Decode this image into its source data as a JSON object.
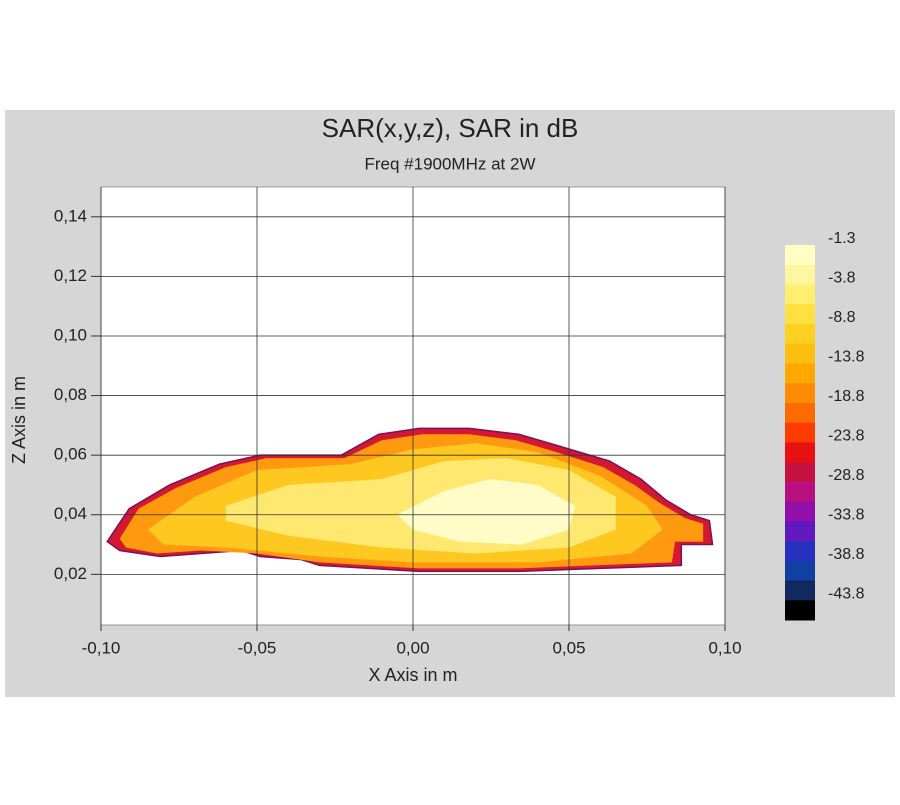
{
  "chart_data": {
    "type": "contour",
    "title": "SAR(x,y,z), SAR in dB",
    "subtitle": "Freq #1900MHz at 2W",
    "x_label": "X Axis in m",
    "y_label": "Z Axis in m",
    "xlim": [
      -0.1,
      0.1
    ],
    "ylim": [
      0.003,
      0.15
    ],
    "xticks": [
      {
        "value": -0.1,
        "label": "-0,10"
      },
      {
        "value": -0.05,
        "label": "-0,05"
      },
      {
        "value": 0,
        "label": "0,00"
      },
      {
        "value": 0.05,
        "label": "0,05"
      },
      {
        "value": 0.1,
        "label": "0,10"
      }
    ],
    "yticks": [
      {
        "value": 0.02,
        "label": "0,02"
      },
      {
        "value": 0.04,
        "label": "0,04"
      },
      {
        "value": 0.06,
        "label": "0,06"
      },
      {
        "value": 0.08,
        "label": "0,08"
      },
      {
        "value": 0.1,
        "label": "0,10"
      },
      {
        "value": 0.12,
        "label": "0,12"
      },
      {
        "value": 0.14,
        "label": "0,14"
      }
    ],
    "grid": true,
    "colorbar": {
      "levels": [
        -1.3,
        -3.8,
        -8.8,
        -13.8,
        -18.8,
        -23.8,
        -28.8,
        -33.8,
        -38.8,
        -43.8
      ],
      "colors": [
        "#ffffc4",
        "#fff7a0",
        "#ffee70",
        "#ffe040",
        "#ffd020",
        "#ffbf10",
        "#ffa800",
        "#ff8c00",
        "#ff6a00",
        "#ff3a00",
        "#e81010",
        "#c81040",
        "#b81080",
        "#9010a8",
        "#6018c0",
        "#2830c0",
        "#1040a0",
        "#102a60",
        "#000000"
      ]
    },
    "contours": [
      {
        "level": -23.8,
        "color": "#d41830",
        "x": [
          -0.098,
          -0.091,
          -0.078,
          -0.062,
          -0.049,
          -0.023,
          -0.011,
          0.002,
          0.018,
          0.034,
          0.047,
          0.063,
          0.073,
          0.081,
          0.089,
          0.095,
          0.096,
          0.086,
          0.086,
          0.06,
          0.034,
          0.002,
          -0.03,
          -0.036,
          -0.049,
          -0.055,
          -0.068,
          -0.081,
          -0.094
        ],
        "z": [
          0.031,
          0.042,
          0.05,
          0.057,
          0.06,
          0.06,
          0.067,
          0.069,
          0.069,
          0.067,
          0.063,
          0.058,
          0.052,
          0.045,
          0.04,
          0.038,
          0.03,
          0.03,
          0.023,
          0.022,
          0.021,
          0.021,
          0.023,
          0.025,
          0.026,
          0.028,
          0.027,
          0.026,
          0.028
        ]
      },
      {
        "level": -13.8,
        "color": "#ff9a10",
        "x": [
          -0.094,
          -0.088,
          -0.076,
          -0.06,
          -0.047,
          -0.022,
          -0.01,
          0.003,
          0.018,
          0.033,
          0.046,
          0.061,
          0.071,
          0.079,
          0.087,
          0.093,
          0.093,
          0.084,
          0.083,
          0.058,
          0.034,
          0.002,
          -0.03,
          -0.05,
          -0.068,
          -0.082,
          -0.092
        ],
        "z": [
          0.032,
          0.042,
          0.049,
          0.056,
          0.059,
          0.059,
          0.065,
          0.067,
          0.067,
          0.065,
          0.061,
          0.056,
          0.05,
          0.044,
          0.039,
          0.037,
          0.031,
          0.031,
          0.024,
          0.023,
          0.022,
          0.022,
          0.024,
          0.027,
          0.028,
          0.027,
          0.029
        ]
      },
      {
        "level": -8.8,
        "color": "#ffc820",
        "x": [
          -0.085,
          -0.07,
          -0.05,
          -0.02,
          0,
          0.02,
          0.04,
          0.06,
          0.075,
          0.08,
          0.07,
          0.04,
          0,
          -0.03,
          -0.06,
          -0.08
        ],
        "z": [
          0.035,
          0.046,
          0.055,
          0.057,
          0.062,
          0.064,
          0.061,
          0.053,
          0.043,
          0.035,
          0.027,
          0.024,
          0.024,
          0.026,
          0.029,
          0.03
        ]
      },
      {
        "level": -3.8,
        "color": "#ffe870",
        "x": [
          -0.06,
          -0.04,
          -0.01,
          0.01,
          0.03,
          0.05,
          0.065,
          0.065,
          0.05,
          0.02,
          -0.01,
          -0.04,
          -0.06
        ],
        "z": [
          0.043,
          0.05,
          0.052,
          0.058,
          0.059,
          0.055,
          0.046,
          0.035,
          0.029,
          0.027,
          0.029,
          0.033,
          0.038
        ]
      },
      {
        "level": -1.3,
        "color": "#fffcc8",
        "x": [
          -0.005,
          0.01,
          0.025,
          0.04,
          0.052,
          0.05,
          0.035,
          0.015,
          0
        ],
        "z": [
          0.04,
          0.048,
          0.052,
          0.05,
          0.043,
          0.035,
          0.03,
          0.031,
          0.035
        ]
      }
    ]
  }
}
